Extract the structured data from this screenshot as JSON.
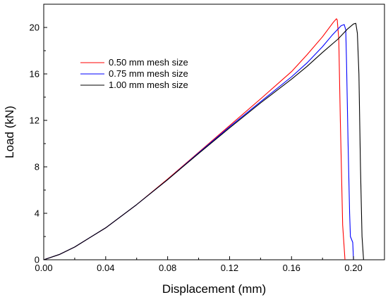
{
  "chart_data": {
    "type": "line",
    "title": "",
    "xlabel": "Displacement (mm)",
    "ylabel": "Load (kN)",
    "xlim": [
      0.0,
      0.22
    ],
    "ylim": [
      0,
      22
    ],
    "xticks": [
      0.0,
      0.04,
      0.08,
      0.12,
      0.16,
      0.2
    ],
    "xtick_labels": [
      "0.00",
      "0.04",
      "0.08",
      "0.12",
      "0.16",
      "0.20"
    ],
    "yticks": [
      0,
      4,
      8,
      12,
      16,
      20
    ],
    "ytick_labels": [
      "0",
      "4",
      "8",
      "12",
      "16",
      "20"
    ],
    "grid": false,
    "legend_position": "upper-left",
    "series": [
      {
        "name": "0.50 mm mesh size",
        "color": "#ff0000",
        "x": [
          0,
          0.01,
          0.02,
          0.04,
          0.06,
          0.08,
          0.1,
          0.12,
          0.14,
          0.16,
          0.17,
          0.18,
          0.187,
          0.189,
          0.1895,
          0.1905,
          0.1915,
          0.193,
          0.1945
        ],
        "y": [
          0,
          0.45,
          1.1,
          2.75,
          4.75,
          6.95,
          9.25,
          11.55,
          13.85,
          16.2,
          17.65,
          19.2,
          20.45,
          20.75,
          20.65,
          19.0,
          12.0,
          3.0,
          0
        ]
      },
      {
        "name": "0.75 mm mesh size",
        "color": "#0000ff",
        "x": [
          0,
          0.01,
          0.02,
          0.04,
          0.06,
          0.08,
          0.1,
          0.12,
          0.14,
          0.16,
          0.17,
          0.18,
          0.186,
          0.192,
          0.194,
          0.195,
          0.1955,
          0.1965,
          0.1975,
          0.198,
          0.1995,
          0.2
        ],
        "y": [
          0,
          0.45,
          1.1,
          2.75,
          4.75,
          6.9,
          9.2,
          11.45,
          13.6,
          15.75,
          16.95,
          18.35,
          19.3,
          20.15,
          20.25,
          19.8,
          17.0,
          10.0,
          4.0,
          2.0,
          1.5,
          0
        ]
      },
      {
        "name": "1.00 mm mesh size",
        "color": "#000000",
        "x": [
          0,
          0.01,
          0.02,
          0.04,
          0.06,
          0.08,
          0.1,
          0.12,
          0.14,
          0.16,
          0.17,
          0.18,
          0.19,
          0.196,
          0.2,
          0.2015,
          0.2025,
          0.2035,
          0.2045,
          0.2055,
          0.2065
        ],
        "y": [
          0,
          0.45,
          1.1,
          2.75,
          4.75,
          6.9,
          9.15,
          11.35,
          13.5,
          15.55,
          16.65,
          17.85,
          19.0,
          19.85,
          20.3,
          20.35,
          19.5,
          16.0,
          8.0,
          2.0,
          0
        ]
      }
    ]
  }
}
